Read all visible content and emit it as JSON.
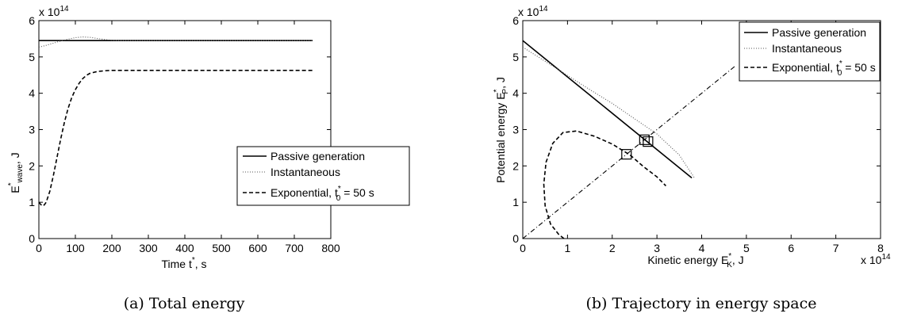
{
  "chart_data": [
    {
      "type": "line",
      "caption": "(a)  Total energy",
      "xlabel": "Time t",
      "xlabel_sup": "*",
      "xlabel_suffix": ", s",
      "ylabel": "E",
      "ylabel_sup": "*",
      "ylabel_sub": "wave",
      "ylabel_suffix": ", J",
      "y_multiplier": "x 10",
      "y_multiplier_exp": "14",
      "xlim": [
        0,
        800
      ],
      "ylim": [
        0,
        6
      ],
      "xticks": [
        "0",
        "100",
        "200",
        "300",
        "400",
        "500",
        "600",
        "700",
        "800"
      ],
      "yticks": [
        "0",
        "1",
        "2",
        "3",
        "4",
        "5",
        "6"
      ],
      "legend_position": "right",
      "series": [
        {
          "name": "Passive generation",
          "style": "solid",
          "x": [
            0,
            750
          ],
          "y": [
            5.45,
            5.45
          ]
        },
        {
          "name": "Instantaneous",
          "style": "dotted",
          "x": [
            0,
            20,
            40,
            60,
            80,
            100,
            120,
            140,
            160,
            180,
            200,
            220,
            240,
            750
          ],
          "y": [
            5.27,
            5.32,
            5.38,
            5.44,
            5.49,
            5.53,
            5.55,
            5.54,
            5.51,
            5.48,
            5.46,
            5.45,
            5.45,
            5.45
          ]
        },
        {
          "name": "Exponential, t",
          "name_sup": "*",
          "name_sub": "0",
          "name_suffix": " = 50 s",
          "style": "dashed",
          "x": [
            0,
            5,
            10,
            15,
            20,
            30,
            40,
            50,
            60,
            70,
            80,
            90,
            100,
            110,
            120,
            130,
            140,
            160,
            180,
            200,
            220,
            250,
            300,
            750
          ],
          "y": [
            1.0,
            0.94,
            0.9,
            0.93,
            1.0,
            1.3,
            1.75,
            2.25,
            2.75,
            3.2,
            3.58,
            3.88,
            4.1,
            4.27,
            4.4,
            4.49,
            4.55,
            4.6,
            4.62,
            4.63,
            4.63,
            4.63,
            4.63,
            4.63
          ]
        }
      ]
    },
    {
      "type": "line",
      "caption": "(b)  Trajectory in energy space",
      "xlabel": "Kinetic energy E",
      "xlabel_sup": "*",
      "xlabel_sub": "K",
      "xlabel_suffix": ", J",
      "ylabel": "Potential energy E",
      "ylabel_sup": "*",
      "ylabel_sub": "P",
      "ylabel_suffix": ", J",
      "x_multiplier": "x 10",
      "x_multiplier_exp": "14",
      "y_multiplier": "x 10",
      "y_multiplier_exp": "14",
      "xlim": [
        0,
        8
      ],
      "ylim": [
        0,
        6
      ],
      "xticks": [
        "0",
        "1",
        "2",
        "3",
        "4",
        "5",
        "6",
        "7",
        "8"
      ],
      "yticks": [
        "0",
        "1",
        "2",
        "3",
        "4",
        "5",
        "6"
      ],
      "legend_position": "top-right",
      "series": [
        {
          "name": "Passive generation",
          "style": "solid",
          "x": [
            0,
            3.78
          ],
          "y": [
            5.45,
            1.67
          ]
        },
        {
          "name": "Instantaneous",
          "style": "dotted",
          "x": [
            0,
            0.5,
            1.0,
            1.5,
            2.0,
            2.5,
            3.0,
            3.5,
            3.85
          ],
          "y": [
            5.27,
            4.88,
            4.49,
            4.1,
            3.72,
            3.3,
            2.88,
            2.3,
            1.65
          ]
        },
        {
          "name": "Exponential, t",
          "name_sup": "*",
          "name_sub": "0",
          "name_suffix": " = 50 s",
          "style": "dashed",
          "x": [
            0.92,
            0.8,
            0.62,
            0.5,
            0.47,
            0.52,
            0.67,
            0.9,
            1.2,
            1.6,
            2.0,
            2.4,
            2.7,
            3.0,
            3.2
          ],
          "y": [
            0.0,
            0.12,
            0.4,
            0.9,
            1.5,
            2.1,
            2.62,
            2.92,
            2.96,
            2.82,
            2.6,
            2.3,
            1.98,
            1.7,
            1.45
          ]
        },
        {
          "name": "",
          "style": "dashdot",
          "x": [
            0,
            4.75
          ],
          "y": [
            0,
            4.75
          ]
        }
      ],
      "markers": [
        {
          "shape": "square",
          "x": 2.32,
          "y": 2.32
        },
        {
          "shape": "square",
          "x": 2.72,
          "y": 2.72
        },
        {
          "shape": "square",
          "x": 2.8,
          "y": 2.67
        }
      ]
    }
  ]
}
